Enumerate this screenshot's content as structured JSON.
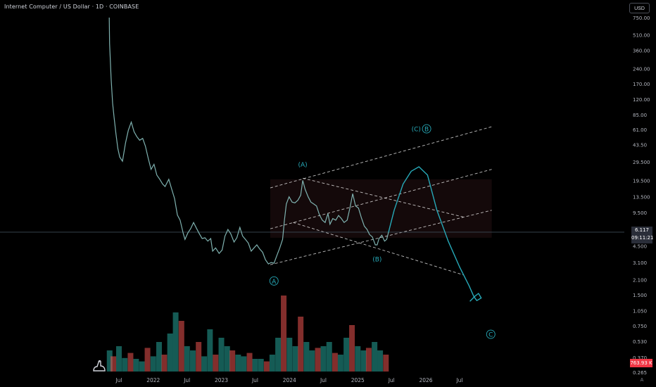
{
  "header": {
    "title": "Internet Computer / US Dollar · 1D · COINBASE",
    "currency_button": "USD"
  },
  "price_label": {
    "price": "6.117",
    "countdown": "09:11:21"
  },
  "volume_label": "763.93 K",
  "axis_mode_button": "A",
  "colors": {
    "background": "#000000",
    "price_line": "#7fb2b0",
    "up": "#26a69a",
    "down": "#ef5350",
    "annotation": "#27a9b8",
    "channel": "#ffffff",
    "channel_fill": "#3a1a1c"
  },
  "chart_data": {
    "type": "line",
    "title": "Internet Computer / US Dollar · 1D · COINBASE",
    "xlabel": "",
    "ylabel": "",
    "y_scale": "log",
    "ylim": [
      0.16,
      780
    ],
    "y_ticks": [
      "750.00",
      "510.00",
      "360.00",
      "240.00",
      "170.00",
      "120.00",
      "85.00",
      "61.00",
      "43.50",
      "29.500",
      "19.500",
      "13.500",
      "9.500",
      "6.500",
      "4.500",
      "3.100",
      "2.100",
      "1.500",
      "1.050",
      "0.750",
      "0.530",
      "0.370",
      "0.265"
    ],
    "y_tick_values": [
      750,
      510,
      360,
      240,
      170,
      120,
      85,
      61,
      43.5,
      29.5,
      19.5,
      13.5,
      9.5,
      6.5,
      4.5,
      3.1,
      2.1,
      1.5,
      1.05,
      0.75,
      0.53,
      0.37,
      0.265
    ],
    "x_ticks": [
      "Jul",
      "2022",
      "Jul",
      "2023",
      "Jul",
      "2024",
      "Jul",
      "2025",
      "Jul",
      "2026",
      "Jul"
    ],
    "x_tick_dates": [
      "2021-07-01",
      "2022-01-01",
      "2022-07-01",
      "2023-01-01",
      "2023-07-01",
      "2024-01-01",
      "2024-07-01",
      "2025-01-01",
      "2025-07-01",
      "2026-01-01",
      "2026-07-01"
    ],
    "current_price": 6.117,
    "series": [
      {
        "points": [
          [
            "2021-05-10",
            750
          ],
          [
            "2021-05-12",
            420
          ],
          [
            "2021-05-20",
            190
          ],
          [
            "2021-05-28",
            110
          ],
          [
            "2021-06-05",
            80
          ],
          [
            "2021-06-15",
            55
          ],
          [
            "2021-06-25",
            40
          ],
          [
            "2021-07-05",
            33
          ],
          [
            "2021-07-20",
            30
          ],
          [
            "2021-08-05",
            45
          ],
          [
            "2021-08-20",
            60
          ],
          [
            "2021-09-05",
            72
          ],
          [
            "2021-09-20",
            58
          ],
          [
            "2021-10-05",
            52
          ],
          [
            "2021-10-20",
            48
          ],
          [
            "2021-11-05",
            50
          ],
          [
            "2021-11-20",
            42
          ],
          [
            "2021-12-05",
            32
          ],
          [
            "2021-12-20",
            25
          ],
          [
            "2022-01-05",
            28
          ],
          [
            "2022-01-20",
            22
          ],
          [
            "2022-02-05",
            20
          ],
          [
            "2022-02-20",
            18
          ],
          [
            "2022-03-05",
            17
          ],
          [
            "2022-03-25",
            20
          ],
          [
            "2022-04-10",
            16
          ],
          [
            "2022-04-25",
            13
          ],
          [
            "2022-05-10",
            9
          ],
          [
            "2022-05-25",
            8
          ],
          [
            "2022-06-10",
            6
          ],
          [
            "2022-06-20",
            5.2
          ],
          [
            "2022-07-05",
            6.0
          ],
          [
            "2022-07-20",
            6.6
          ],
          [
            "2022-08-05",
            7.6
          ],
          [
            "2022-08-20",
            6.7
          ],
          [
            "2022-09-05",
            5.9
          ],
          [
            "2022-09-20",
            5.3
          ],
          [
            "2022-10-05",
            5.4
          ],
          [
            "2022-10-20",
            5.0
          ],
          [
            "2022-11-05",
            5.3
          ],
          [
            "2022-11-15",
            4.0
          ],
          [
            "2022-12-01",
            4.3
          ],
          [
            "2022-12-20",
            3.8
          ],
          [
            "2023-01-05",
            4.1
          ],
          [
            "2023-01-20",
            5.6
          ],
          [
            "2023-02-05",
            6.5
          ],
          [
            "2023-02-20",
            5.9
          ],
          [
            "2023-03-10",
            4.9
          ],
          [
            "2023-03-25",
            5.4
          ],
          [
            "2023-04-10",
            6.8
          ],
          [
            "2023-04-25",
            5.6
          ],
          [
            "2023-05-10",
            5.2
          ],
          [
            "2023-05-25",
            4.8
          ],
          [
            "2023-06-10",
            4.0
          ],
          [
            "2023-06-25",
            4.3
          ],
          [
            "2023-07-10",
            4.6
          ],
          [
            "2023-07-25",
            4.2
          ],
          [
            "2023-08-10",
            3.9
          ],
          [
            "2023-08-25",
            3.3
          ],
          [
            "2023-09-10",
            3.0
          ],
          [
            "2023-09-25",
            3.1
          ],
          [
            "2023-10-10",
            3.05
          ],
          [
            "2023-10-25",
            3.6
          ],
          [
            "2023-11-10",
            4.3
          ],
          [
            "2023-11-25",
            5.2
          ],
          [
            "2023-12-05",
            8.0
          ],
          [
            "2023-12-15",
            11.5
          ],
          [
            "2023-12-30",
            13.5
          ],
          [
            "2024-01-15",
            12.0
          ],
          [
            "2024-01-30",
            11.8
          ],
          [
            "2024-02-15",
            12.5
          ],
          [
            "2024-03-01",
            14.0
          ],
          [
            "2024-03-12",
            19.5
          ],
          [
            "2024-03-25",
            16.0
          ],
          [
            "2024-04-10",
            13.5
          ],
          [
            "2024-04-25",
            12.0
          ],
          [
            "2024-05-10",
            11.5
          ],
          [
            "2024-05-25",
            11.0
          ],
          [
            "2024-06-10",
            9.0
          ],
          [
            "2024-06-25",
            8.0
          ],
          [
            "2024-07-10",
            7.6
          ],
          [
            "2024-07-25",
            9.3
          ],
          [
            "2024-08-05",
            7.3
          ],
          [
            "2024-08-20",
            8.3
          ],
          [
            "2024-09-05",
            8.0
          ],
          [
            "2024-09-20",
            8.9
          ],
          [
            "2024-10-05",
            8.3
          ],
          [
            "2024-10-20",
            7.6
          ],
          [
            "2024-11-05",
            8.0
          ],
          [
            "2024-11-20",
            10.5
          ],
          [
            "2024-12-05",
            14.5
          ],
          [
            "2024-12-20",
            11.0
          ],
          [
            "2025-01-05",
            10.5
          ],
          [
            "2025-01-20",
            8.5
          ],
          [
            "2025-02-05",
            7.0
          ],
          [
            "2025-02-20",
            6.5
          ],
          [
            "2025-03-05",
            5.8
          ],
          [
            "2025-03-20",
            5.5
          ],
          [
            "2025-04-05",
            4.6
          ],
          [
            "2025-04-15",
            4.6
          ],
          [
            "2025-04-25",
            5.3
          ],
          [
            "2025-05-10",
            5.7
          ],
          [
            "2025-05-25",
            5.0
          ],
          [
            "2025-06-05",
            5.2
          ],
          [
            "2025-06-15",
            6.117
          ]
        ]
      }
    ],
    "volume": {
      "type": "bar",
      "last_value": "763.93 K",
      "points": [
        [
          "2021-05-12",
          0.25
        ],
        [
          "2021-06-01",
          0.18
        ],
        [
          "2021-07-01",
          0.3
        ],
        [
          "2021-08-01",
          0.16
        ],
        [
          "2021-09-01",
          0.22
        ],
        [
          "2021-10-01",
          0.15
        ],
        [
          "2021-11-01",
          0.12
        ],
        [
          "2021-12-01",
          0.28
        ],
        [
          "2022-01-01",
          0.18
        ],
        [
          "2022-02-01",
          0.35
        ],
        [
          "2022-03-01",
          0.2
        ],
        [
          "2022-04-01",
          0.45
        ],
        [
          "2022-05-01",
          0.7
        ],
        [
          "2022-06-01",
          0.6
        ],
        [
          "2022-07-01",
          0.3
        ],
        [
          "2022-08-01",
          0.25
        ],
        [
          "2022-09-01",
          0.35
        ],
        [
          "2022-10-01",
          0.18
        ],
        [
          "2022-11-01",
          0.5
        ],
        [
          "2022-12-01",
          0.2
        ],
        [
          "2023-01-01",
          0.4
        ],
        [
          "2023-02-01",
          0.3
        ],
        [
          "2023-03-01",
          0.25
        ],
        [
          "2023-04-01",
          0.2
        ],
        [
          "2023-05-01",
          0.18
        ],
        [
          "2023-06-01",
          0.22
        ],
        [
          "2023-07-01",
          0.15
        ],
        [
          "2023-08-01",
          0.15
        ],
        [
          "2023-09-01",
          0.12
        ],
        [
          "2023-10-01",
          0.2
        ],
        [
          "2023-11-01",
          0.4
        ],
        [
          "2023-12-01",
          0.9
        ],
        [
          "2024-01-01",
          0.4
        ],
        [
          "2024-02-01",
          0.3
        ],
        [
          "2024-03-01",
          0.65
        ],
        [
          "2024-04-01",
          0.35
        ],
        [
          "2024-05-01",
          0.25
        ],
        [
          "2024-06-01",
          0.28
        ],
        [
          "2024-07-01",
          0.3
        ],
        [
          "2024-08-01",
          0.35
        ],
        [
          "2024-09-01",
          0.22
        ],
        [
          "2024-10-01",
          0.2
        ],
        [
          "2024-11-01",
          0.4
        ],
        [
          "2024-12-01",
          0.55
        ],
        [
          "2025-01-01",
          0.3
        ],
        [
          "2025-02-01",
          0.25
        ],
        [
          "2025-03-01",
          0.28
        ],
        [
          "2025-04-01",
          0.35
        ],
        [
          "2025-05-01",
          0.25
        ],
        [
          "2025-06-01",
          0.2
        ]
      ]
    },
    "annotations": [
      {
        "label": "A",
        "date": "2023-10-10",
        "price": 2.05,
        "circled": true
      },
      {
        "label": "(A)",
        "date": "2024-03-12",
        "price": 28,
        "circled": false
      },
      {
        "label": "(B)",
        "date": "2025-04-15",
        "price": 3.35,
        "circled": false
      },
      {
        "label": "(C)",
        "date": "2025-11-10",
        "price": 62,
        "circled": false
      },
      {
        "label": "B",
        "date": "2026-01-05",
        "price": 62,
        "circled": true
      },
      {
        "label": "C",
        "date": "2026-12-15",
        "price": 0.62,
        "circled": true
      }
    ],
    "projection": [
      [
        "2025-06-15",
        6.1
      ],
      [
        "2025-07-15",
        10.0
      ],
      [
        "2025-09-01",
        18.0
      ],
      [
        "2025-10-15",
        24.0
      ],
      [
        "2025-11-25",
        26.5
      ],
      [
        "2026-01-10",
        22.0
      ],
      [
        "2026-03-01",
        10.0
      ],
      [
        "2026-05-01",
        5.0
      ],
      [
        "2026-07-01",
        2.8
      ],
      [
        "2026-08-20",
        1.85
      ],
      [
        "2026-09-15",
        1.45
      ],
      [
        "2026-10-01",
        1.32
      ],
      [
        "2026-10-25",
        1.4
      ],
      [
        "2026-10-10",
        1.55
      ],
      [
        "2026-09-20",
        1.45
      ],
      [
        "2026-08-25",
        1.3
      ]
    ],
    "channels": [
      {
        "from": [
          "2023-09-20",
          2.95
        ],
        "to": [
          "2026-12-20",
          10.0
        ]
      },
      {
        "from": [
          "2023-09-20",
          6.6
        ],
        "to": [
          "2026-12-20",
          25.0
        ]
      },
      {
        "from": [
          "2023-09-20",
          16.5
        ],
        "to": [
          "2026-12-20",
          65.0
        ]
      },
      {
        "from": [
          "2024-03-12",
          20.5
        ],
        "to": [
          "2026-07-20",
          8.6
        ]
      },
      {
        "from": [
          "2024-01-20",
          7.6
        ],
        "to": [
          "2026-07-20",
          2.35
        ]
      }
    ],
    "channel_fill_box": {
      "from_date": "2023-09-20",
      "to_date": "2026-12-20",
      "low": 5.4,
      "high": 20.0
    },
    "grid": false,
    "legend": "none"
  }
}
